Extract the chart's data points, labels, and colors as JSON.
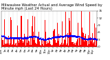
{
  "title": "Milwaukee Weather Actual and Average Wind Speed by Minute mph (Last 24 Hours)",
  "title_line1": "Milwaukee Weather Actual and Average Wind Speed by Minute mph (Last 24 Hours)",
  "n_points": 1440,
  "bar_color": "#ff0000",
  "line_color": "#0000ff",
  "background_color": "#ffffff",
  "plot_bg_color": "#ffffff",
  "grid_color": "#888888",
  "ylim": [
    0,
    15
  ],
  "yticks": [
    0,
    3,
    6,
    9,
    12,
    15
  ],
  "title_fontsize": 3.8,
  "tick_fontsize": 3.0,
  "seed": 42
}
